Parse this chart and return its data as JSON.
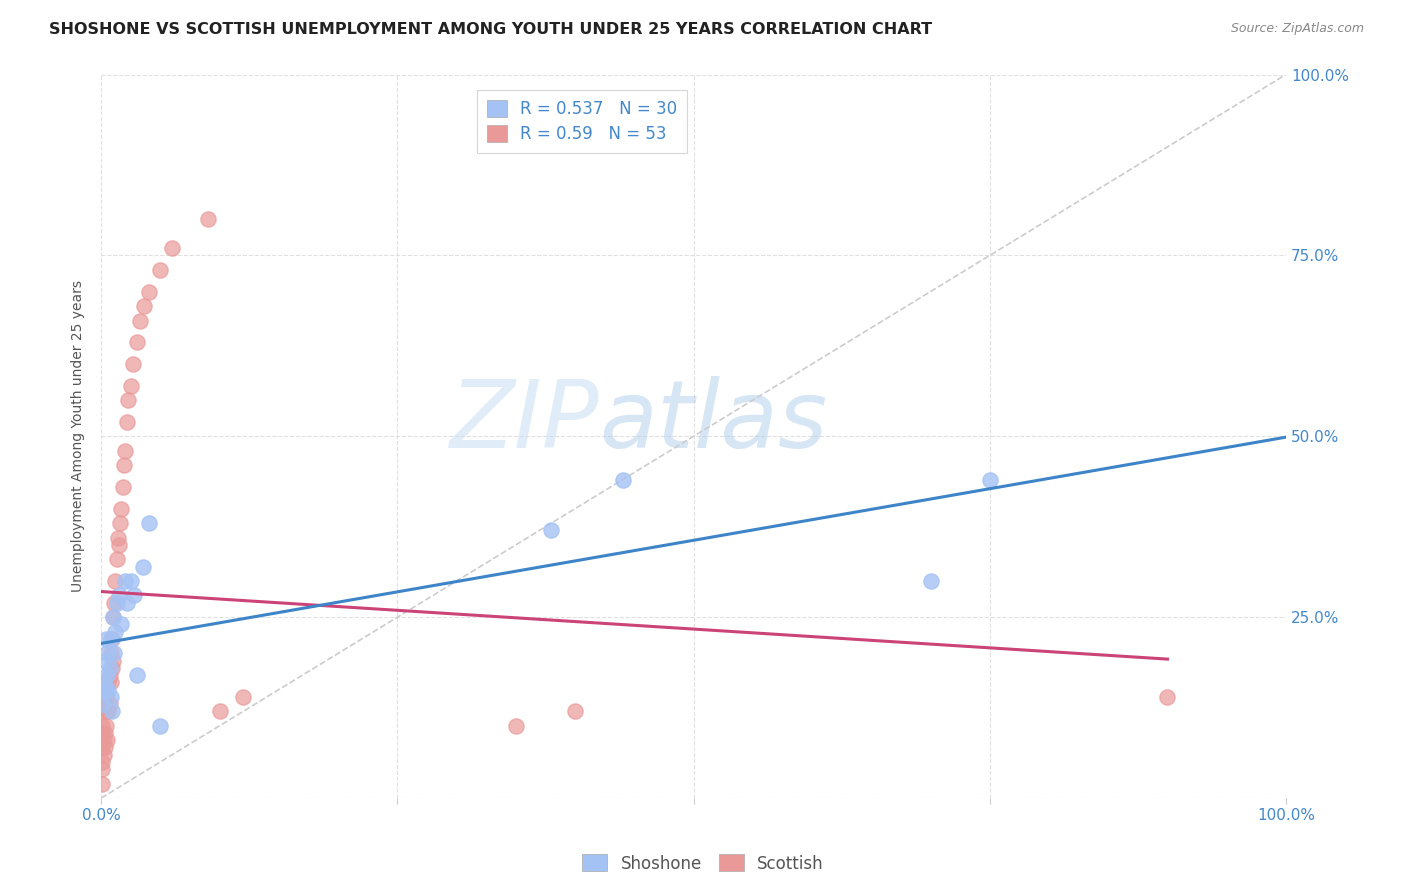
{
  "title": "SHOSHONE VS SCOTTISH UNEMPLOYMENT AMONG YOUTH UNDER 25 YEARS CORRELATION CHART",
  "source": "Source: ZipAtlas.com",
  "ylabel": "Unemployment Among Youth under 25 years",
  "watermark_zip": "ZIP",
  "watermark_atlas": "atlas",
  "shoshone_R": 0.537,
  "shoshone_N": 30,
  "scottish_R": 0.59,
  "scottish_N": 53,
  "shoshone_color": "#a4c2f4",
  "scottish_color": "#ea9999",
  "shoshone_line_color": "#3d85c8",
  "scottish_line_color": "#cc4477",
  "diagonal_color": "#cccccc",
  "shoshone_x": [
    0.001,
    0.002,
    0.003,
    0.003,
    0.004,
    0.005,
    0.005,
    0.006,
    0.007,
    0.008,
    0.008,
    0.009,
    0.01,
    0.011,
    0.012,
    0.013,
    0.015,
    0.017,
    0.02,
    0.022,
    0.025,
    0.028,
    0.03,
    0.035,
    0.04,
    0.05,
    0.38,
    0.44,
    0.7,
    0.75
  ],
  "shoshone_y": [
    0.13,
    0.16,
    0.15,
    0.19,
    0.22,
    0.17,
    0.2,
    0.15,
    0.18,
    0.14,
    0.22,
    0.12,
    0.25,
    0.2,
    0.23,
    0.27,
    0.28,
    0.24,
    0.3,
    0.27,
    0.3,
    0.28,
    0.17,
    0.32,
    0.38,
    0.1,
    0.37,
    0.44,
    0.3,
    0.44
  ],
  "scottish_x": [
    0.001,
    0.001,
    0.001,
    0.001,
    0.001,
    0.001,
    0.001,
    0.002,
    0.002,
    0.002,
    0.003,
    0.003,
    0.003,
    0.004,
    0.004,
    0.005,
    0.005,
    0.006,
    0.006,
    0.007,
    0.007,
    0.008,
    0.008,
    0.009,
    0.009,
    0.01,
    0.01,
    0.011,
    0.012,
    0.013,
    0.014,
    0.015,
    0.016,
    0.017,
    0.018,
    0.019,
    0.02,
    0.022,
    0.023,
    0.025,
    0.027,
    0.03,
    0.033,
    0.036,
    0.04,
    0.05,
    0.06,
    0.09,
    0.1,
    0.12,
    0.35,
    0.4,
    0.9
  ],
  "scottish_y": [
    0.02,
    0.04,
    0.05,
    0.07,
    0.09,
    0.1,
    0.12,
    0.06,
    0.08,
    0.14,
    0.07,
    0.09,
    0.13,
    0.1,
    0.14,
    0.08,
    0.12,
    0.12,
    0.16,
    0.13,
    0.17,
    0.16,
    0.2,
    0.18,
    0.22,
    0.19,
    0.25,
    0.27,
    0.3,
    0.33,
    0.36,
    0.35,
    0.38,
    0.4,
    0.43,
    0.46,
    0.48,
    0.52,
    0.55,
    0.57,
    0.6,
    0.63,
    0.66,
    0.68,
    0.7,
    0.73,
    0.76,
    0.8,
    0.12,
    0.14,
    0.1,
    0.12,
    0.14
  ],
  "xlim": [
    0.0,
    1.0
  ],
  "ylim": [
    0.0,
    1.0
  ],
  "xtick_positions": [
    0.0,
    0.25,
    0.5,
    0.75,
    1.0
  ],
  "ytick_positions": [
    0.0,
    0.25,
    0.5,
    0.75,
    1.0
  ],
  "xtick_labels": [
    "0.0%",
    "",
    "",
    "",
    "100.0%"
  ],
  "ytick_labels_right": [
    "",
    "25.0%",
    "50.0%",
    "75.0%",
    "100.0%"
  ],
  "title_fontsize": 11.5,
  "source_fontsize": 9,
  "legend_fontsize": 12,
  "axis_label_fontsize": 10,
  "tick_fontsize": 11,
  "background_color": "#ffffff",
  "grid_color": "#e0e0e0",
  "tick_color": "#4488cc"
}
